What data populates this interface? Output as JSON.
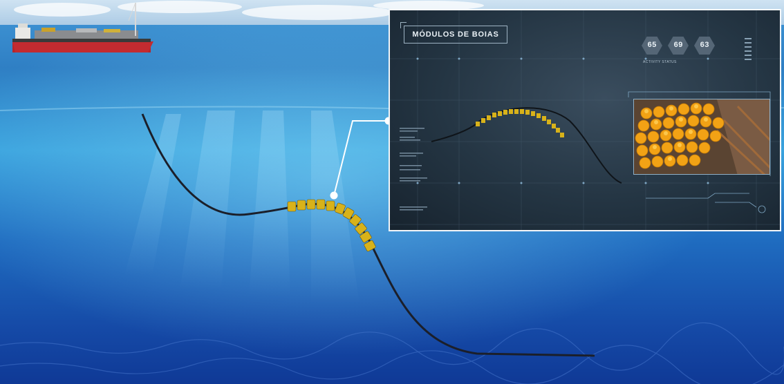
{
  "panel": {
    "title": "MÓDULOS DE BOIAS",
    "readouts": [
      "65",
      "69",
      "63"
    ],
    "status_label": "ACTIVITY STATUS"
  },
  "colors": {
    "sea_top": "#4aa0d8",
    "sea_deep": "#0e3a9a",
    "buoy": "#d8b21a",
    "panel_bg": "#243543",
    "panel_border": "#f4f7fa",
    "hull": "#b6252a"
  }
}
